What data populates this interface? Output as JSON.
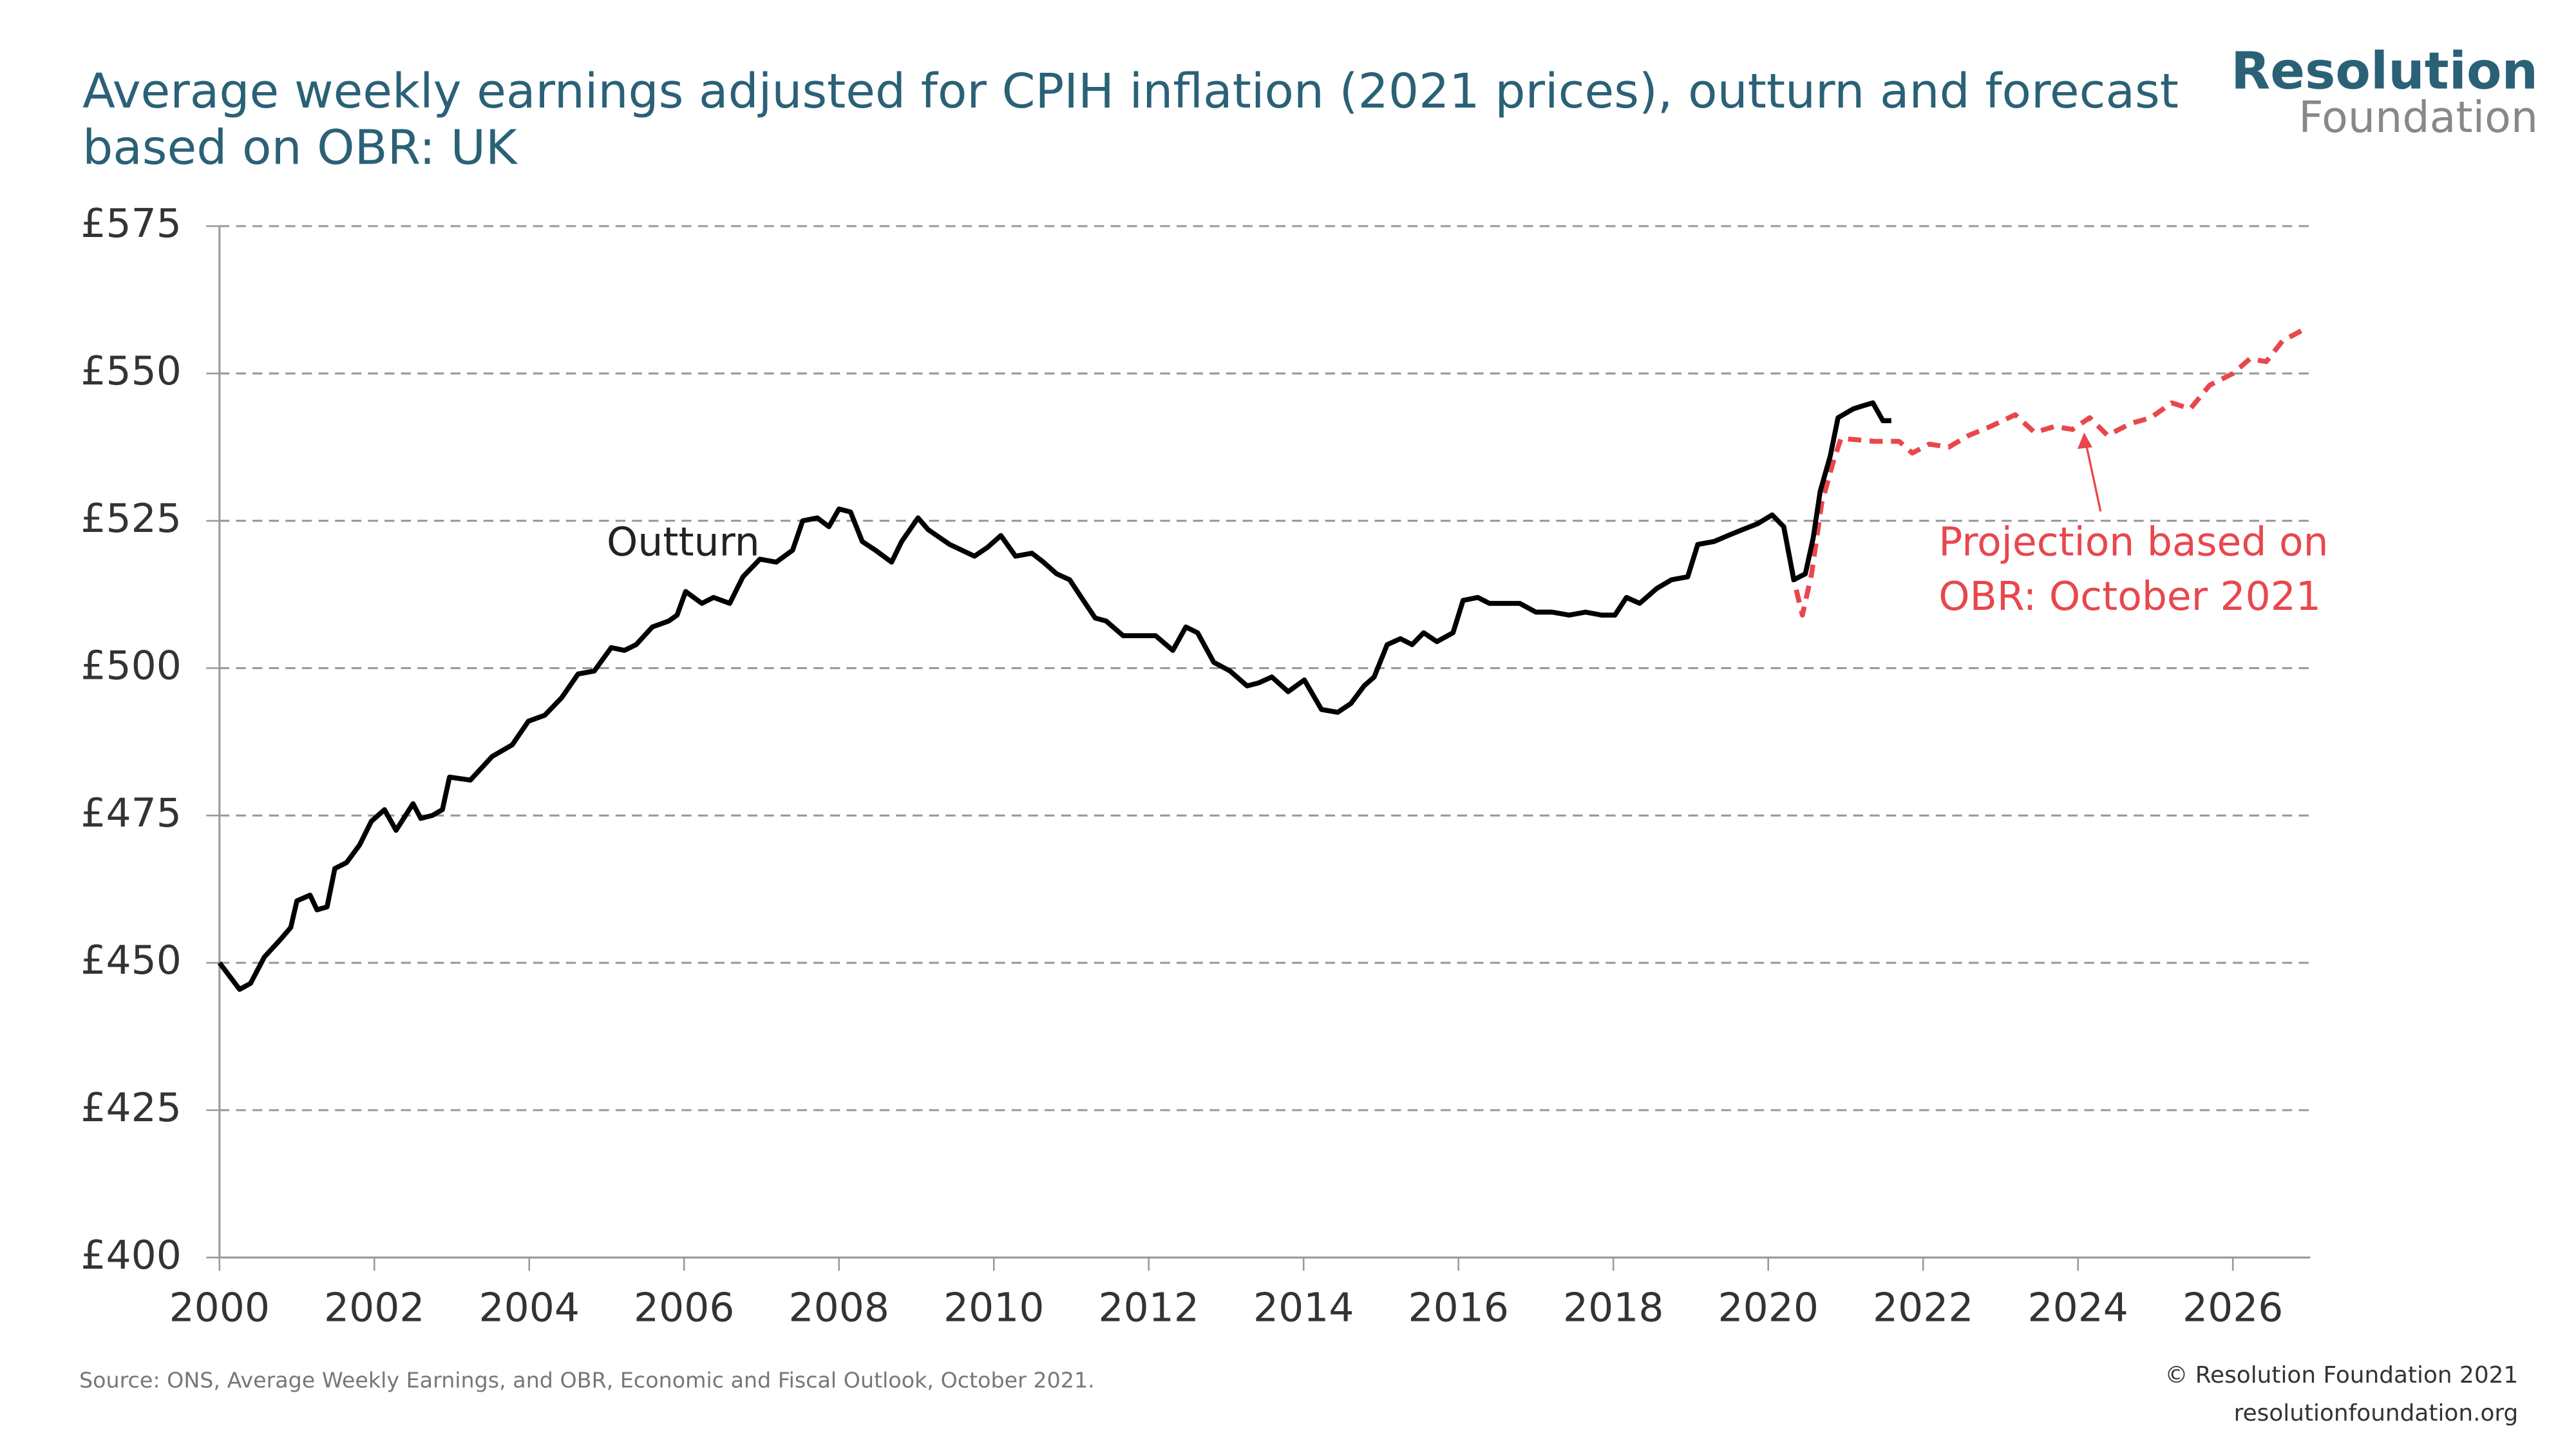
{
  "chart_data": {
    "type": "line",
    "title": "Average weekly earnings adjusted for CPIH inflation (2021 prices), outturn and forecast based on OBR: UK",
    "logo": {
      "top": "Resolution",
      "bottom": "Foundation"
    },
    "source": "Source: ONS, Average Weekly Earnings, and OBR, Economic and Fiscal Outlook, October 2021.",
    "copyright": [
      "© Resolution Foundation 2021",
      "resolutionfoundation.org"
    ],
    "annotations": [
      {
        "text": "Outturn",
        "x": 2005.0,
        "y": 521
      },
      {
        "text": [
          "Projection based on",
          "OBR: October 2021"
        ],
        "x": 2022.2,
        "y": 521,
        "arrow_to": [
          2024.1,
          540
        ]
      }
    ],
    "xlim": [
      2000,
      2027
    ],
    "xticks": [
      2000,
      2002,
      2004,
      2006,
      2008,
      2010,
      2012,
      2014,
      2016,
      2018,
      2020,
      2022,
      2024,
      2026
    ],
    "ylim": [
      400,
      575
    ],
    "yticks": [
      {
        "value": 400,
        "label": "£400"
      },
      {
        "value": 425,
        "label": "£425"
      },
      {
        "value": 450,
        "label": "£450"
      },
      {
        "value": 475,
        "label": "£475"
      },
      {
        "value": 500,
        "label": "£500"
      },
      {
        "value": 525,
        "label": "£525"
      },
      {
        "value": 550,
        "label": "£550"
      },
      {
        "value": 575,
        "label": "£575"
      }
    ],
    "grid": true,
    "series": [
      {
        "name": "Outturn",
        "color": "#000000",
        "dashed": false,
        "x": [
          2000.0,
          2000.26,
          2000.4,
          2000.58,
          2000.79,
          2000.92,
          2001.0,
          2001.17,
          2001.26,
          2001.39,
          2001.49,
          2001.64,
          2001.81,
          2001.96,
          2002.13,
          2002.28,
          2002.5,
          2002.6,
          2002.75,
          2002.88,
          2002.97,
          2003.24,
          2003.52,
          2003.78,
          2003.99,
          2004.2,
          2004.42,
          2004.63,
          2004.84,
          2005.06,
          2005.23,
          2005.38,
          2005.59,
          2005.8,
          2005.91,
          2006.02,
          2006.23,
          2006.38,
          2006.59,
          2006.76,
          2006.98,
          2007.19,
          2007.4,
          2007.53,
          2007.72,
          2007.87,
          2008.0,
          2008.15,
          2008.3,
          2008.47,
          2008.68,
          2008.81,
          2009.02,
          2009.15,
          2009.43,
          2009.75,
          2009.92,
          2010.09,
          2010.28,
          2010.49,
          2010.64,
          2010.81,
          2010.98,
          2011.13,
          2011.31,
          2011.45,
          2011.67,
          2011.88,
          2012.09,
          2012.31,
          2012.48,
          2012.63,
          2012.84,
          2013.05,
          2013.27,
          2013.42,
          2013.59,
          2013.8,
          2014.01,
          2014.23,
          2014.44,
          2014.61,
          2014.78,
          2014.91,
          2015.08,
          2015.25,
          2015.4,
          2015.55,
          2015.72,
          2015.93,
          2016.06,
          2016.25,
          2016.4,
          2016.62,
          2016.79,
          2017.0,
          2017.21,
          2017.43,
          2017.64,
          2017.85,
          2018.02,
          2018.17,
          2018.34,
          2018.56,
          2018.75,
          2018.96,
          2019.09,
          2019.3,
          2019.48,
          2019.67,
          2019.86,
          2020.05,
          2020.2,
          2020.33,
          2020.48,
          2020.58,
          2020.67,
          2020.8,
          2020.9,
          2021.1,
          2021.22,
          2021.35,
          2021.48,
          2021.59
        ],
        "values": [
          450,
          445.5,
          446.5,
          451,
          454,
          456,
          460.5,
          461.5,
          459,
          459.5,
          466,
          467,
          470,
          474,
          476,
          472.5,
          477,
          474.5,
          475,
          476,
          481.5,
          481,
          485,
          487,
          491,
          492,
          495,
          499,
          499.5,
          503.5,
          503,
          504,
          507,
          508,
          509,
          513,
          511,
          512,
          511,
          515.5,
          518.5,
          518,
          520,
          525,
          525.5,
          524,
          527,
          526.5,
          521.5,
          520,
          518,
          521.5,
          525.5,
          523.5,
          521,
          519,
          520.5,
          522.5,
          519,
          519.5,
          518,
          516,
          515,
          512,
          508.5,
          508,
          505.5,
          505.5,
          505.5,
          503,
          507,
          506,
          501,
          499.5,
          497,
          497.5,
          498.5,
          496,
          498,
          493,
          492.5,
          494,
          497,
          498.5,
          504,
          505,
          504,
          506,
          504.5,
          506,
          511.5,
          512,
          511,
          511,
          511,
          509.5,
          509.5,
          509,
          509.5,
          509,
          509,
          512,
          511,
          513.5,
          515,
          515.5,
          521,
          521.5,
          522.5,
          523.5,
          524.5,
          526,
          524,
          515,
          516,
          522,
          530,
          536,
          542.5,
          544,
          544.5,
          545,
          542,
          542
        ]
      },
      {
        "name": "Projection based on OBR: October 2021",
        "color": "#e8474c",
        "dashed": true,
        "x": [
          2020.2,
          2020.33,
          2020.44,
          2020.56,
          2020.69,
          2020.84,
          2020.94,
          2021.37,
          2021.69,
          2021.86,
          2022.08,
          2022.33,
          2022.59,
          2022.87,
          2023.19,
          2023.44,
          2023.7,
          2023.93,
          2024.15,
          2024.38,
          2024.68,
          2024.94,
          2025.21,
          2025.45,
          2025.7,
          2026.0,
          2026.22,
          2026.43,
          2026.64,
          2026.92
        ],
        "values": [
          524,
          515,
          509,
          516,
          528,
          535,
          539,
          538.5,
          538.5,
          536.5,
          538,
          537.5,
          539.5,
          541,
          543,
          540,
          541,
          540.5,
          542.5,
          539.5,
          541.5,
          542.5,
          545,
          544,
          548,
          550,
          552.5,
          552,
          555.5,
          557.5
        ]
      }
    ]
  }
}
